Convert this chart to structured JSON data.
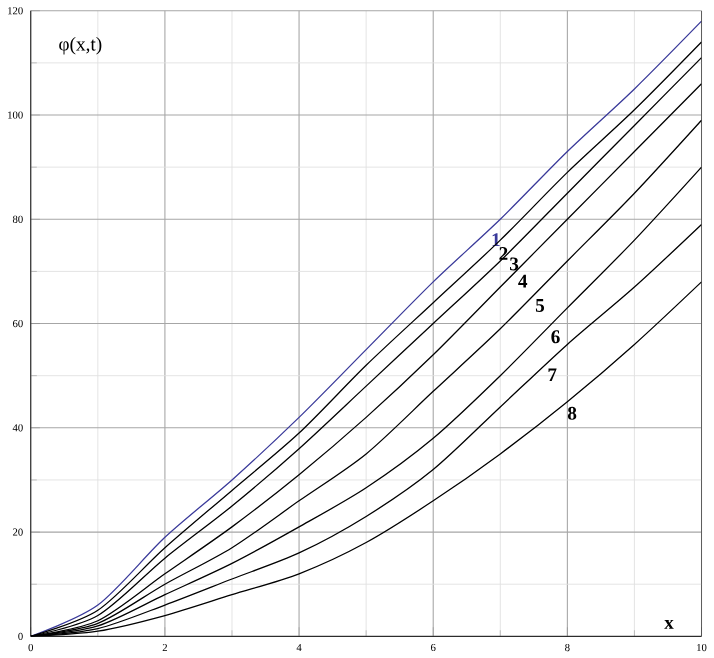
{
  "chart_data": {
    "type": "line",
    "ylabel": "φ(x,t)",
    "xlabel": "x",
    "x": [
      0,
      1,
      2,
      3,
      4,
      5,
      6,
      7,
      8,
      9,
      10
    ],
    "series": [
      {
        "name": "1",
        "color": "#3a3a9a",
        "values": [
          0,
          6,
          19,
          30,
          42,
          55,
          68,
          80,
          93,
          105,
          118
        ]
      },
      {
        "name": "2",
        "color": "#000000",
        "values": [
          0,
          5,
          17,
          28,
          39,
          52,
          64,
          76,
          89,
          101,
          114
        ]
      },
      {
        "name": "3",
        "color": "#000000",
        "values": [
          0,
          4,
          15,
          25,
          36,
          48,
          60,
          72,
          85,
          98,
          111
        ]
      },
      {
        "name": "4",
        "color": "#000000",
        "values": [
          0,
          3,
          12,
          21,
          31,
          42,
          54,
          67,
          80,
          93,
          106
        ]
      },
      {
        "name": "5",
        "color": "#000000",
        "values": [
          0,
          2.5,
          10,
          17,
          26,
          35,
          47,
          59,
          72,
          85,
          99
        ]
      },
      {
        "name": "6",
        "color": "#000000",
        "values": [
          0,
          2,
          8,
          14,
          21,
          28.5,
          38,
          50,
          63,
          76,
          90
        ]
      },
      {
        "name": "7",
        "color": "#000000",
        "values": [
          0,
          1.5,
          6,
          11,
          16,
          23,
          32,
          44,
          56,
          67,
          79
        ]
      },
      {
        "name": "8",
        "color": "#000000",
        "values": [
          0,
          1,
          4,
          8,
          12,
          18,
          26,
          35,
          45,
          56,
          68
        ]
      }
    ],
    "xlim": [
      0,
      10
    ],
    "ylim": [
      0,
      120
    ],
    "xticks": [
      0,
      2,
      4,
      6,
      8,
      10
    ],
    "yticks": [
      0,
      20,
      40,
      60,
      80,
      100,
      120
    ],
    "grid": true,
    "marker": "none",
    "line_style": "solid"
  }
}
